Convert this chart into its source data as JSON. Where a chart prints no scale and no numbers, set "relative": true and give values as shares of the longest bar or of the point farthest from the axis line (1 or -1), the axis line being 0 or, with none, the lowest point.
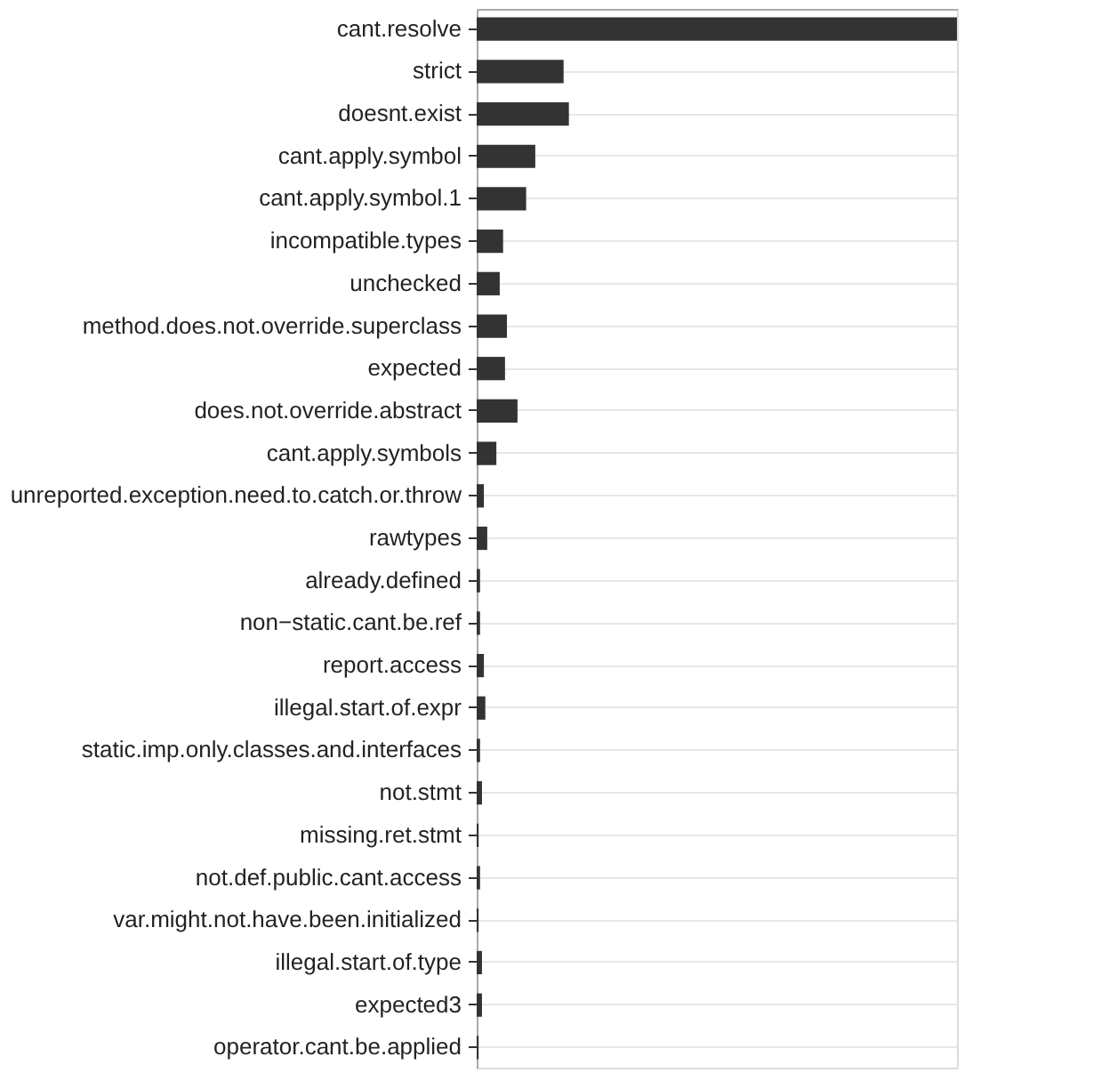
{
  "chart_data": {
    "type": "bar",
    "orientation": "horizontal",
    "relative": true,
    "grid": "y",
    "categories": [
      "cant.resolve",
      "strict",
      "doesnt.exist",
      "cant.apply.symbol",
      "cant.apply.symbol.1",
      "incompatible.types",
      "unchecked",
      "method.does.not.override.superclass",
      "expected",
      "does.not.override.abstract",
      "cant.apply.symbols",
      "unreported.exception.need.to.catch.or.throw",
      "rawtypes",
      "already.defined",
      "non−static.cant.be.ref",
      "report.access",
      "illegal.start.of.expr",
      "static.imp.only.classes.and.interfaces",
      "not.stmt",
      "missing.ret.stmt",
      "not.def.public.cant.access",
      "var.might.not.have.been.initialized",
      "illegal.start.of.type",
      "expected3",
      "operator.cant.be.applied"
    ],
    "values": [
      1,
      0.181,
      0.192,
      0.122,
      0.103,
      0.055,
      0.048,
      0.063,
      0.059,
      0.085,
      0.041,
      0.015,
      0.022,
      0.007,
      0.007,
      0.015,
      0.018,
      0.007,
      0.011,
      0.004,
      0.007,
      0.004,
      0.011,
      0.011,
      0.004
    ],
    "color": "#333333"
  }
}
